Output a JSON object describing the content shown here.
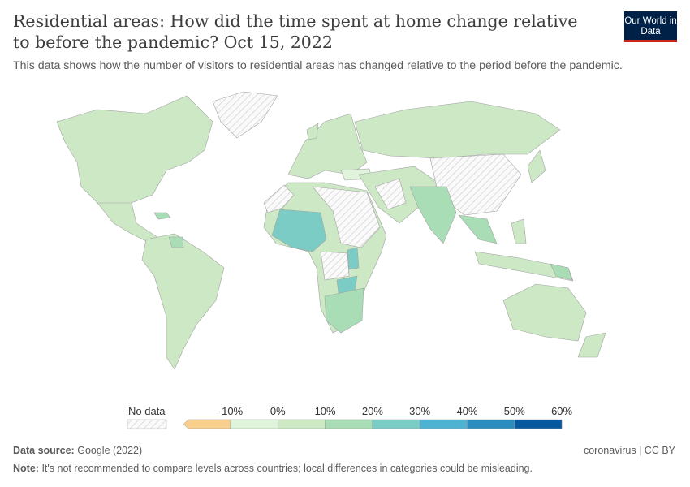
{
  "header": {
    "title": "Residential areas: How did the time spent at home change relative to before the pandemic? Oct 15, 2022",
    "subtitle": "This data shows how the number of visitors to residential areas has changed relative to the period before the pandemic.",
    "logo_text": "Our World in Data"
  },
  "legend": {
    "no_data_label": "No data",
    "no_data_color": "#e9e9e9",
    "tick_labels": [
      "-10%",
      "0%",
      "10%",
      "20%",
      "30%",
      "40%",
      "50%",
      "60%"
    ],
    "bins": [
      {
        "range": "< -10%",
        "color": "#f8cf8d"
      },
      {
        "range": "-10% to 0%",
        "color": "#e0f3db"
      },
      {
        "range": "0% to 10%",
        "color": "#cce8c5"
      },
      {
        "range": "10% to 20%",
        "color": "#a8ddb5"
      },
      {
        "range": "20% to 30%",
        "color": "#7bccc4"
      },
      {
        "range": "30% to 40%",
        "color": "#4eb3d3"
      },
      {
        "range": "40% to 50%",
        "color": "#2b8cbe"
      },
      {
        "range": "50% to 60%",
        "color": "#08589e"
      }
    ]
  },
  "footer": {
    "source_label": "Data source:",
    "source_value": "Google (2022)",
    "license": "coronavirus | CC BY",
    "note_label": "Note:",
    "note_text": "It's not recommended to compare levels across countries; local differences in categories could be misleading."
  }
}
